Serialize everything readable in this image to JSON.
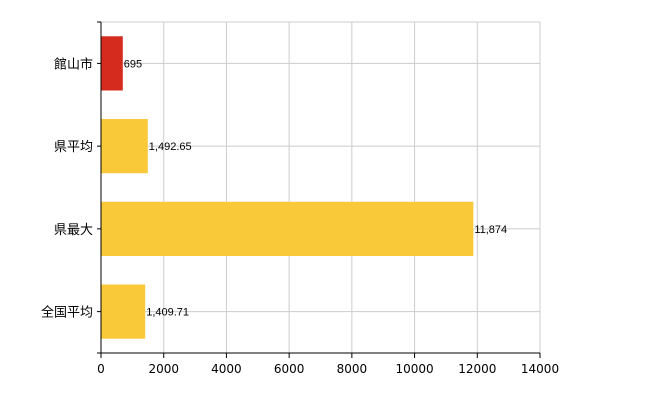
{
  "chart_data": {
    "type": "bar",
    "orientation": "horizontal",
    "categories": [
      "館山市",
      "県平均",
      "県最大",
      "全国平均"
    ],
    "values": [
      695,
      1492.65,
      11874,
      1409.71
    ],
    "value_labels": [
      "695",
      "1,492.65",
      "11,874",
      "1,409.71"
    ],
    "bar_colors": [
      "#d42b1e",
      "#f9c93a",
      "#f9c93a",
      "#f9c93a"
    ],
    "xlim": [
      0,
      14000
    ],
    "x_ticks": [
      0,
      2000,
      4000,
      6000,
      8000,
      10000,
      12000,
      14000
    ],
    "x_tick_labels": [
      "0",
      "2000",
      "4000",
      "6000",
      "8000",
      "10000",
      "12000",
      "14000"
    ],
    "grid": true,
    "title": "",
    "xlabel": "",
    "ylabel": ""
  }
}
